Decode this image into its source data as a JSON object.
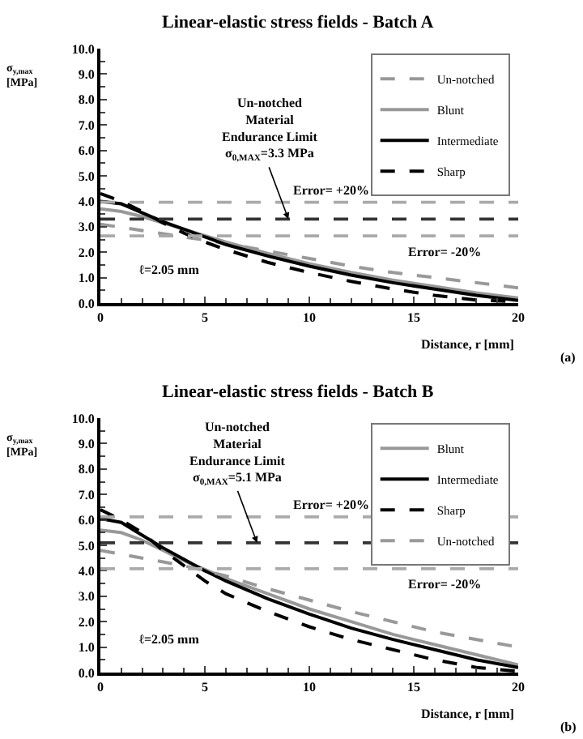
{
  "chart_data": [
    {
      "type": "line",
      "title": "Linear-elastic stress fields - Batch A",
      "xlabel": "Distance, r [mm]",
      "ylabel": "σ$_{y,max}$\n[MPa]",
      "annotations": [
        {
          "text": "Un-notched\nMaterial\nEndurance Limit\nσ$_{0,MAX}$=3.3 MPa",
          "x": 9,
          "y": 3.3
        },
        "Error= +20%",
        "Error= -20%",
        "ℓ=2.05 mm",
        "(a)"
      ],
      "series": [
        {
          "name": "Un-notched",
          "color": "#999999",
          "line_style": "dashed",
          "x": [
            0,
            2,
            4,
            6,
            8,
            10,
            12,
            14,
            16,
            18,
            20
          ],
          "values": [
            3.1,
            2.85,
            2.6,
            2.35,
            2.05,
            1.75,
            1.45,
            1.2,
            1.0,
            0.8,
            0.6
          ]
        },
        {
          "name": "Blunt",
          "color": "#999999",
          "line_style": "solid",
          "x": [
            0,
            1,
            2,
            3,
            4,
            5,
            6,
            8,
            10,
            12,
            14,
            16,
            18,
            20
          ],
          "values": [
            3.7,
            3.6,
            3.4,
            3.15,
            2.9,
            2.65,
            2.4,
            1.95,
            1.55,
            1.2,
            0.9,
            0.65,
            0.4,
            0.2
          ]
        },
        {
          "name": "Intermediate",
          "color": "#000000",
          "line_style": "solid",
          "x": [
            0,
            1,
            2,
            3,
            4,
            5,
            6,
            8,
            10,
            12,
            14,
            16,
            18,
            20
          ],
          "values": [
            4.0,
            3.9,
            3.55,
            3.2,
            2.9,
            2.6,
            2.3,
            1.85,
            1.45,
            1.1,
            0.8,
            0.55,
            0.3,
            0.1
          ]
        },
        {
          "name": "Sharp",
          "color": "#000000",
          "line_style": "dashed",
          "x": [
            0,
            1,
            2,
            3,
            4,
            5,
            6,
            8,
            10,
            12,
            14,
            16,
            18,
            20
          ],
          "values": [
            4.3,
            4.0,
            3.6,
            3.15,
            2.75,
            2.4,
            2.1,
            1.6,
            1.2,
            0.85,
            0.55,
            0.3,
            0.12,
            0.05
          ]
        }
      ],
      "ref_lines": [
        {
          "axis": "y",
          "value": 3.3,
          "color": "#333333",
          "line_style": "dashed"
        },
        {
          "axis": "y",
          "value": 3.96,
          "color": "#aaaaaa",
          "line_style": "dashed"
        },
        {
          "axis": "y",
          "value": 2.64,
          "color": "#aaaaaa",
          "line_style": "dashed"
        }
      ],
      "xlim": [
        0,
        20
      ],
      "xticks": [
        0,
        5,
        10,
        15,
        20
      ],
      "ylim": [
        0,
        10
      ],
      "yticks": [
        {
          "value": 0,
          "label": "0.0"
        },
        {
          "value": 1,
          "label": "1.0"
        },
        {
          "value": 2,
          "label": "2.0"
        },
        {
          "value": 3,
          "label": "3.0"
        },
        {
          "value": 4,
          "label": "4.0"
        },
        {
          "value": 5,
          "label": "5.0"
        },
        {
          "value": 6,
          "label": "6.0"
        },
        {
          "value": 7,
          "label": "7.0"
        },
        {
          "value": 8,
          "label": "8.0"
        },
        {
          "value": 9,
          "label": "9.0"
        },
        {
          "value": 10,
          "label": "10.0"
        }
      ],
      "legend": "top right"
    },
    {
      "type": "line",
      "title": "Linear-elastic stress fields - Batch B",
      "xlabel": "Distance, r [mm]",
      "ylabel": "σ$_{y,max}$\n[MPa]",
      "annotations": [
        {
          "text": "Un-notched\nMaterial\nEndurance Limit\nσ$_{0,MAX}$=5.1 MPa",
          "x": 7.5,
          "y": 5.1
        },
        "Error= +20%",
        "Error= -20%",
        "ℓ=2.05 mm",
        "(b)"
      ],
      "series": [
        {
          "name": "Blunt",
          "color": "#999999",
          "line_style": "solid",
          "x": [
            0,
            1,
            2,
            3,
            4,
            5,
            6,
            8,
            10,
            12,
            14,
            16,
            18,
            20
          ],
          "values": [
            5.6,
            5.5,
            5.2,
            4.8,
            4.4,
            4.05,
            3.7,
            3.1,
            2.5,
            2.0,
            1.5,
            1.1,
            0.7,
            0.3
          ]
        },
        {
          "name": "Intermediate",
          "color": "#000000",
          "line_style": "solid",
          "x": [
            0,
            1,
            2,
            3,
            4,
            5,
            6,
            8,
            10,
            12,
            14,
            16,
            18,
            20
          ],
          "values": [
            6.05,
            5.9,
            5.4,
            4.9,
            4.45,
            4.0,
            3.6,
            2.9,
            2.3,
            1.75,
            1.3,
            0.9,
            0.5,
            0.2
          ]
        },
        {
          "name": "Sharp",
          "color": "#000000",
          "line_style": "dashed",
          "x": [
            0,
            1,
            2,
            3,
            4,
            5,
            6,
            8,
            10,
            12,
            14,
            16,
            18,
            20
          ],
          "values": [
            6.4,
            6.0,
            5.5,
            4.8,
            4.2,
            3.6,
            3.1,
            2.4,
            1.8,
            1.3,
            0.9,
            0.5,
            0.2,
            0.05
          ]
        },
        {
          "name": "Un-notched",
          "color": "#999999",
          "line_style": "dashed",
          "x": [
            0,
            2,
            4,
            6,
            8,
            10,
            12,
            14,
            16,
            18,
            20
          ],
          "values": [
            4.8,
            4.5,
            4.2,
            3.8,
            3.3,
            2.85,
            2.4,
            2.0,
            1.6,
            1.3,
            1.0
          ]
        }
      ],
      "ref_lines": [
        {
          "axis": "y",
          "value": 5.1,
          "color": "#333333",
          "line_style": "dashed"
        },
        {
          "axis": "y",
          "value": 6.12,
          "color": "#aaaaaa",
          "line_style": "dashed"
        },
        {
          "axis": "y",
          "value": 4.08,
          "color": "#aaaaaa",
          "line_style": "dashed"
        }
      ],
      "xlim": [
        0,
        20
      ],
      "xticks": [
        0,
        5,
        10,
        15,
        20
      ],
      "ylim": [
        0,
        10
      ],
      "yticks": [
        {
          "value": 0,
          "label": "0.0"
        },
        {
          "value": 1,
          "label": "1.0"
        },
        {
          "value": 2,
          "label": "2.0"
        },
        {
          "value": 3,
          "label": "3.0"
        },
        {
          "value": 4,
          "label": "4.0"
        },
        {
          "value": 5,
          "label": "5.0"
        },
        {
          "value": 6,
          "label": "6.0"
        },
        {
          "value": 7,
          "label": "7.0"
        },
        {
          "value": 8,
          "label": "8.0"
        },
        {
          "value": 9,
          "label": "9.0"
        },
        {
          "value": 10,
          "label": "10.0"
        }
      ],
      "legend": "top right"
    }
  ]
}
